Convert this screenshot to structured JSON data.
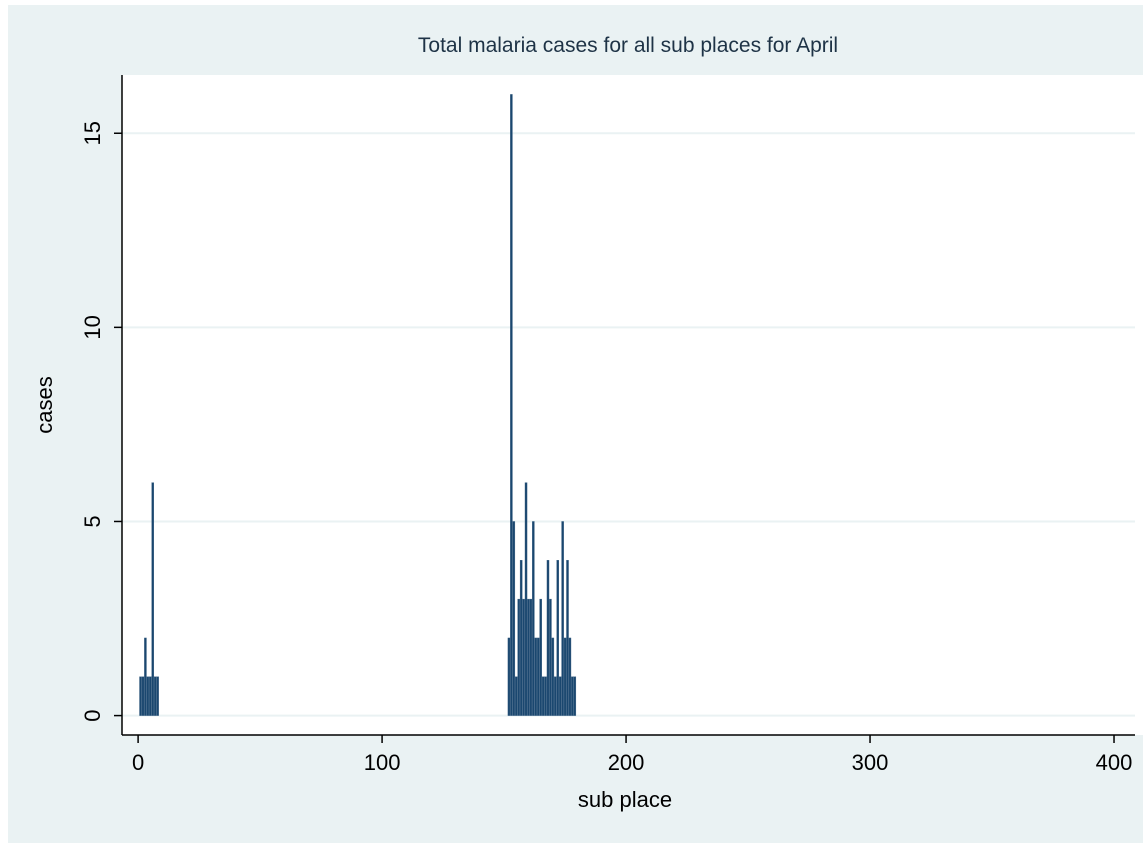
{
  "chart_data": {
    "type": "bar",
    "title": "Total malaria cases for all sub places for April",
    "x_label": "sub place",
    "y_label": "cases",
    "x": [
      1,
      2,
      3,
      4,
      5,
      6,
      7,
      8,
      152,
      153,
      154,
      155,
      156,
      157,
      158,
      159,
      160,
      161,
      162,
      163,
      164,
      165,
      166,
      167,
      168,
      169,
      170,
      171,
      172,
      173,
      174,
      175,
      176,
      177,
      178,
      179
    ],
    "values": [
      1,
      1,
      2,
      1,
      1,
      6,
      1,
      1,
      2,
      16,
      5,
      1,
      3,
      4,
      3,
      6,
      3,
      3,
      5,
      2,
      2,
      3,
      1,
      1,
      4,
      3,
      2,
      1,
      4,
      1,
      5,
      2,
      4,
      2,
      1,
      1
    ],
    "color": "#1a476f",
    "xlim": [
      -6.6,
      408.6
    ],
    "ylim": [
      -0.5,
      16.5
    ],
    "xticks": [
      0,
      100,
      200,
      300,
      400
    ],
    "yticks": [
      0,
      5,
      10,
      15
    ],
    "grid": true
  }
}
